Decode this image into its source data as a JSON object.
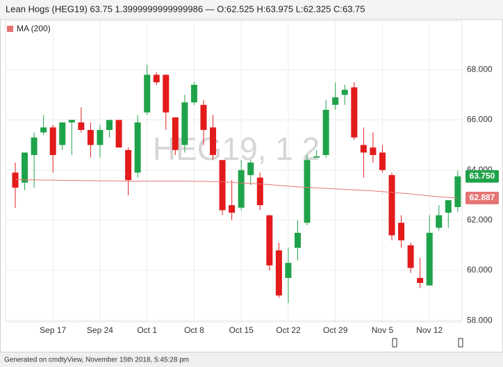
{
  "chart_data": {
    "type": "candlestick",
    "title": "Lean Hogs (HEG19) 63.75 1.3999999999999986 — O:62.525 H:63.975 L:62.325 C:63.75",
    "watermark": "HEG19, 1 2",
    "categories": [
      null,
      null,
      null,
      null,
      "Sep 17",
      null,
      null,
      null,
      null,
      "Sep 24",
      null,
      null,
      null,
      null,
      "Oct 1",
      null,
      null,
      null,
      null,
      "Oct 8",
      null,
      null,
      null,
      null,
      "Oct 15",
      null,
      null,
      null,
      null,
      "Oct 22",
      null,
      null,
      null,
      null,
      "Oct 29",
      null,
      null,
      null,
      null,
      "Nov 5",
      null,
      null,
      null,
      null,
      "Nov 12",
      null,
      null,
      null
    ],
    "open": [
      63.9,
      63.5,
      64.6,
      65.5,
      65.7,
      65.0,
      65.9,
      65.9,
      65.6,
      65.0,
      65.6,
      66.0,
      64.8,
      63.9,
      66.3,
      67.8,
      67.8,
      66.1,
      65.0,
      66.7,
      66.6,
      65.7,
      64.4,
      62.6,
      62.5,
      63.8,
      63.7,
      62.2,
      60.8,
      59.7,
      60.9,
      61.9,
      64.5,
      64.6,
      66.6,
      67.0,
      67.3,
      65.0,
      64.9,
      64.7,
      63.8,
      61.9,
      61.0,
      59.7,
      59.4,
      61.7,
      62.3,
      62.525
    ],
    "high": [
      64.3,
      64.7,
      65.5,
      66.2,
      65.8,
      65.9,
      66.0,
      66.5,
      65.9,
      65.8,
      66.0,
      66.0,
      64.9,
      66.2,
      68.2,
      67.9,
      67.8,
      66.1,
      67.0,
      67.5,
      66.8,
      66.2,
      64.4,
      63.6,
      64.4,
      64.4,
      63.9,
      62.2,
      61.1,
      60.9,
      62.0,
      64.6,
      64.8,
      66.8,
      67.5,
      67.4,
      67.5,
      65.7,
      65.5,
      65.0,
      63.9,
      62.2,
      61.1,
      60.5,
      62.2,
      62.6,
      62.8,
      63.975
    ],
    "low": [
      62.5,
      63.2,
      63.3,
      65.4,
      63.9,
      64.8,
      64.6,
      65.5,
      64.5,
      64.5,
      65.3,
      64.9,
      63.0,
      63.7,
      66.2,
      67.4,
      65.6,
      64.6,
      64.7,
      66.6,
      65.0,
      64.4,
      62.2,
      62.0,
      62.4,
      63.4,
      62.4,
      60.0,
      58.9,
      58.7,
      60.4,
      61.8,
      64.5,
      64.5,
      66.4,
      66.6,
      65.2,
      63.7,
      64.3,
      63.9,
      61.2,
      60.9,
      59.9,
      59.3,
      59.4,
      61.6,
      61.7,
      62.325
    ],
    "close": [
      63.3,
      64.7,
      65.3,
      65.7,
      64.6,
      65.9,
      66.0,
      65.6,
      65.0,
      65.6,
      66.0,
      64.9,
      63.6,
      65.9,
      67.8,
      67.5,
      66.3,
      64.8,
      66.7,
      67.4,
      65.6,
      64.6,
      62.4,
      62.3,
      64.0,
      64.3,
      62.6,
      60.2,
      59.0,
      60.3,
      61.5,
      64.4,
      64.55,
      66.4,
      66.9,
      67.2,
      65.3,
      64.7,
      64.6,
      64.0,
      61.4,
      61.2,
      60.1,
      59.5,
      61.5,
      62.2,
      62.8,
      63.75
    ],
    "up_color": "#1fa34a",
    "down_color": "#e31b1b",
    "ma": {
      "name": "MA (200)",
      "color": "#e57373",
      "values": [
        63.62,
        63.61,
        63.61,
        63.6,
        63.6,
        63.59,
        63.59,
        63.58,
        63.58,
        63.57,
        63.57,
        63.57,
        63.56,
        63.56,
        63.56,
        63.56,
        63.56,
        63.56,
        63.56,
        63.55,
        63.55,
        63.54,
        63.53,
        63.51,
        63.49,
        63.47,
        63.45,
        63.42,
        63.39,
        63.36,
        63.33,
        63.31,
        63.29,
        63.27,
        63.25,
        63.23,
        63.21,
        63.19,
        63.17,
        63.14,
        63.11,
        63.08,
        63.05,
        63.01,
        62.97,
        62.94,
        62.91,
        62.887
      ]
    },
    "ylim": [
      57.95,
      69.95
    ],
    "yticks": [
      {
        "value": 58,
        "label": "58.000"
      },
      {
        "value": 60,
        "label": "60.000"
      },
      {
        "value": 62,
        "label": "62.000"
      },
      {
        "value": 64,
        "label": "64.000"
      },
      {
        "value": 66,
        "label": "66.000"
      },
      {
        "value": 68,
        "label": "68.000"
      }
    ],
    "grid": true,
    "price_tags": [
      {
        "value": 63.75,
        "label": "63.750",
        "color": "#1fa34a"
      },
      {
        "value": 62.887,
        "label": "62.887",
        "color": "#e57373"
      }
    ]
  },
  "footer": "Generated on cmdtyView, November 15th 2018, 5:45:28 pm"
}
